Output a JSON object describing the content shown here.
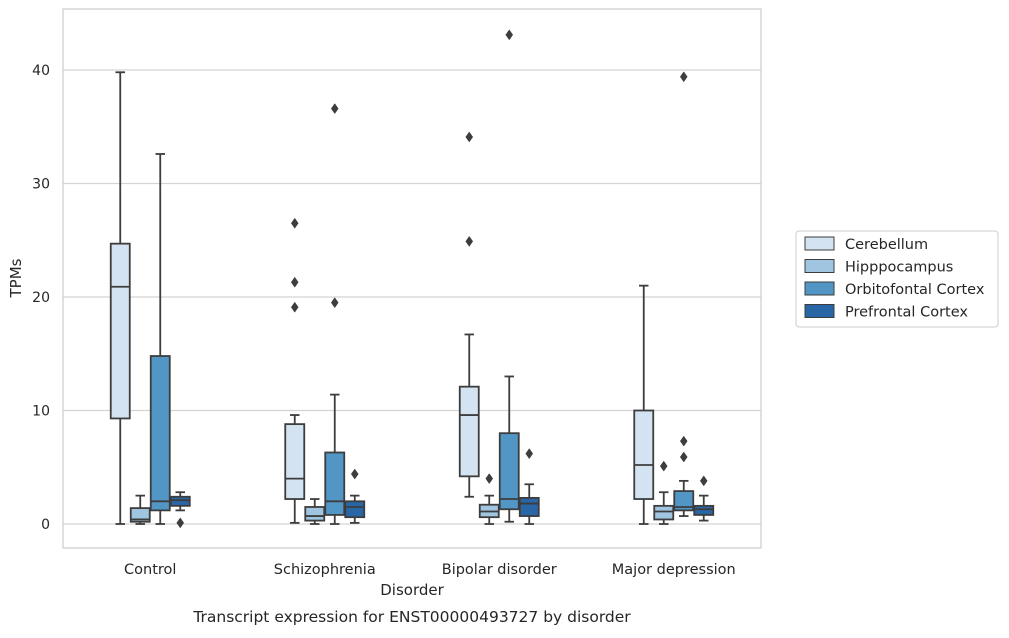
{
  "chart_data": {
    "type": "box",
    "title": "",
    "caption": "Transcript expression for ENST00000493727 by disorder",
    "xlabel": "Disorder",
    "ylabel": "TPMs",
    "ylim": [
      -2.1,
      45.4
    ],
    "yticks": [
      0,
      10,
      20,
      30,
      40
    ],
    "ytick_labels": [
      "0",
      "10",
      "20",
      "30",
      "40"
    ],
    "grid": "horizontal",
    "legend_position": "right",
    "categories": [
      "Control",
      "Schizophrenia",
      "Bipolar disorder",
      "Major depression"
    ],
    "series": [
      {
        "name": "Cerebellum",
        "color": "#d4e3f1",
        "boxes": [
          {
            "whisker_low": 0.0,
            "q1": 9.3,
            "median": 20.9,
            "q3": 24.7,
            "whisker_high": 39.8,
            "outliers": []
          },
          {
            "whisker_low": 0.1,
            "q1": 2.2,
            "median": 4.0,
            "q3": 8.8,
            "whisker_high": 9.6,
            "outliers": [
              19.1,
              21.3,
              26.5
            ]
          },
          {
            "whisker_low": 2.4,
            "q1": 4.2,
            "median": 9.6,
            "q3": 12.1,
            "whisker_high": 16.7,
            "outliers": [
              24.9,
              34.1
            ]
          },
          {
            "whisker_low": 0.0,
            "q1": 2.2,
            "median": 5.2,
            "q3": 10.0,
            "whisker_high": 21.0,
            "outliers": []
          }
        ]
      },
      {
        "name": "Hipppocampus",
        "color": "#9fc5e0",
        "boxes": [
          {
            "whisker_low": 0.0,
            "q1": 0.2,
            "median": 0.4,
            "q3": 1.4,
            "whisker_high": 2.5,
            "outliers": []
          },
          {
            "whisker_low": 0.0,
            "q1": 0.3,
            "median": 0.7,
            "q3": 1.5,
            "whisker_high": 2.2,
            "outliers": []
          },
          {
            "whisker_low": 0.0,
            "q1": 0.6,
            "median": 1.1,
            "q3": 1.7,
            "whisker_high": 2.5,
            "outliers": [
              4.0
            ]
          },
          {
            "whisker_low": 0.0,
            "q1": 0.4,
            "median": 1.1,
            "q3": 1.6,
            "whisker_high": 2.8,
            "outliers": [
              5.1
            ]
          }
        ]
      },
      {
        "name": "Orbitofontal Cortex",
        "color": "#5296c6",
        "boxes": [
          {
            "whisker_low": 0.0,
            "q1": 1.2,
            "median": 2.0,
            "q3": 14.8,
            "whisker_high": 32.6,
            "outliers": []
          },
          {
            "whisker_low": 0.0,
            "q1": 0.8,
            "median": 2.0,
            "q3": 6.3,
            "whisker_high": 11.4,
            "outliers": [
              19.5,
              36.6
            ]
          },
          {
            "whisker_low": 0.2,
            "q1": 1.3,
            "median": 2.2,
            "q3": 8.0,
            "whisker_high": 13.0,
            "outliers": [
              43.1
            ]
          },
          {
            "whisker_low": 0.7,
            "q1": 1.2,
            "median": 1.5,
            "q3": 2.9,
            "whisker_high": 3.8,
            "outliers": [
              5.9,
              7.3,
              39.4
            ]
          }
        ]
      },
      {
        "name": "Prefrontal Cortex",
        "color": "#2966a6",
        "boxes": [
          {
            "whisker_low": 1.2,
            "q1": 1.6,
            "median": 2.1,
            "q3": 2.4,
            "whisker_high": 2.8,
            "outliers": [
              0.1
            ]
          },
          {
            "whisker_low": 0.1,
            "q1": 0.6,
            "median": 1.5,
            "q3": 2.0,
            "whisker_high": 2.5,
            "outliers": [
              4.4
            ]
          },
          {
            "whisker_low": 0.0,
            "q1": 0.7,
            "median": 1.8,
            "q3": 2.3,
            "whisker_high": 3.5,
            "outliers": [
              6.2
            ]
          },
          {
            "whisker_low": 0.3,
            "q1": 0.8,
            "median": 1.3,
            "q3": 1.6,
            "whisker_high": 2.5,
            "outliers": [
              3.8
            ]
          }
        ]
      }
    ]
  }
}
